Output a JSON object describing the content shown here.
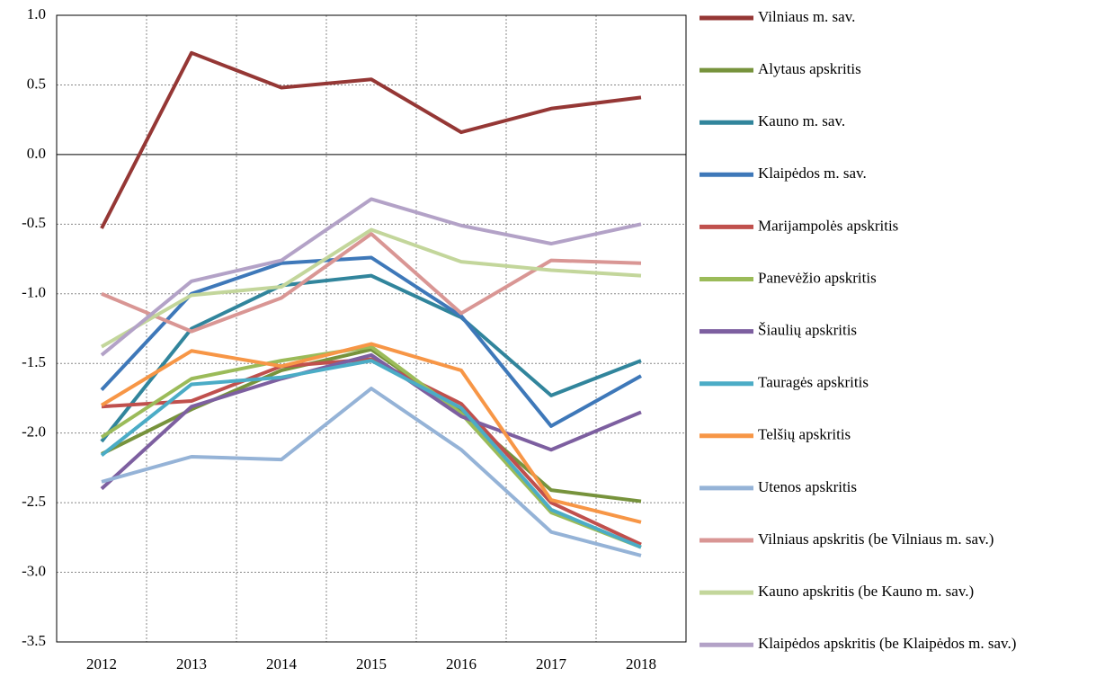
{
  "chart_data": {
    "type": "line",
    "categories": [
      "2012",
      "2013",
      "2014",
      "2015",
      "2016",
      "2017",
      "2018"
    ],
    "ylim": [
      -3.5,
      1.0
    ],
    "yticks": [
      {
        "value": -3.5,
        "label": "-3.5"
      },
      {
        "value": -3.0,
        "label": "-3.0"
      },
      {
        "value": -2.5,
        "label": "-2.5"
      },
      {
        "value": -2.0,
        "label": "-2.0"
      },
      {
        "value": -1.5,
        "label": "-1.5"
      },
      {
        "value": -1.0,
        "label": "-1.0"
      },
      {
        "value": -0.5,
        "label": "-0.5"
      },
      {
        "value": 0.0,
        "label": "0.0"
      },
      {
        "value": 0.5,
        "label": "0.5"
      },
      {
        "value": 1.0,
        "label": "1.0"
      }
    ],
    "grid": true,
    "legend": "right",
    "series": [
      {
        "name": "Vilniaus m. sav.",
        "color": "#953735",
        "values": [
          -0.53,
          0.73,
          0.48,
          0.54,
          0.16,
          0.33,
          0.41
        ]
      },
      {
        "name": "Alytaus apskritis",
        "color": "#77933c",
        "values": [
          -2.15,
          -1.83,
          -1.55,
          -1.4,
          -1.85,
          -2.41,
          -2.49
        ]
      },
      {
        "name": "Kauno m. sav.",
        "color": "#31859c",
        "values": [
          -2.06,
          -1.25,
          -0.94,
          -0.87,
          -1.17,
          -1.73,
          -1.48
        ]
      },
      {
        "name": "Klaipėdos m. sav.",
        "color": "#3e78b9",
        "values": [
          -1.69,
          -1.0,
          -0.78,
          -0.74,
          -1.16,
          -1.95,
          -1.59
        ]
      },
      {
        "name": "Marijampolės apskritis",
        "color": "#c0504d",
        "values": [
          -1.81,
          -1.77,
          -1.52,
          -1.47,
          -1.79,
          -2.5,
          -2.8
        ]
      },
      {
        "name": "Panevėžio apskritis",
        "color": "#9bbb59",
        "values": [
          -2.03,
          -1.61,
          -1.48,
          -1.38,
          -1.86,
          -2.57,
          -2.82
        ]
      },
      {
        "name": "Šiaulių apskritis",
        "color": "#7d5fa0",
        "values": [
          -2.4,
          -1.81,
          -1.61,
          -1.44,
          -1.88,
          -2.12,
          -1.85
        ]
      },
      {
        "name": "Tauragės apskritis",
        "color": "#4bacc6",
        "values": [
          -2.16,
          -1.65,
          -1.6,
          -1.48,
          -1.82,
          -2.55,
          -2.82
        ]
      },
      {
        "name": "Telšių apskritis",
        "color": "#f79646",
        "values": [
          -1.8,
          -1.41,
          -1.52,
          -1.36,
          -1.55,
          -2.48,
          -2.64
        ]
      },
      {
        "name": "Utenos apskritis",
        "color": "#95b3d7",
        "values": [
          -2.35,
          -2.17,
          -2.19,
          -1.68,
          -2.12,
          -2.71,
          -2.88
        ]
      },
      {
        "name": "Vilniaus apskritis (be Vilniaus m. sav.)",
        "color": "#d99694",
        "values": [
          -1.0,
          -1.27,
          -1.03,
          -0.57,
          -1.14,
          -0.76,
          -0.78
        ]
      },
      {
        "name": "Kauno apskritis (be Kauno m. sav.)",
        "color": "#c3d69b",
        "values": [
          -1.38,
          -1.01,
          -0.95,
          -0.54,
          -0.77,
          -0.83,
          -0.87
        ]
      },
      {
        "name": "Klaipėdos apskritis (be Klaipėdos m. sav.)",
        "color": "#b3a2c7",
        "values": [
          -1.44,
          -0.91,
          -0.76,
          -0.32,
          -0.51,
          -0.64,
          -0.5
        ]
      }
    ]
  }
}
